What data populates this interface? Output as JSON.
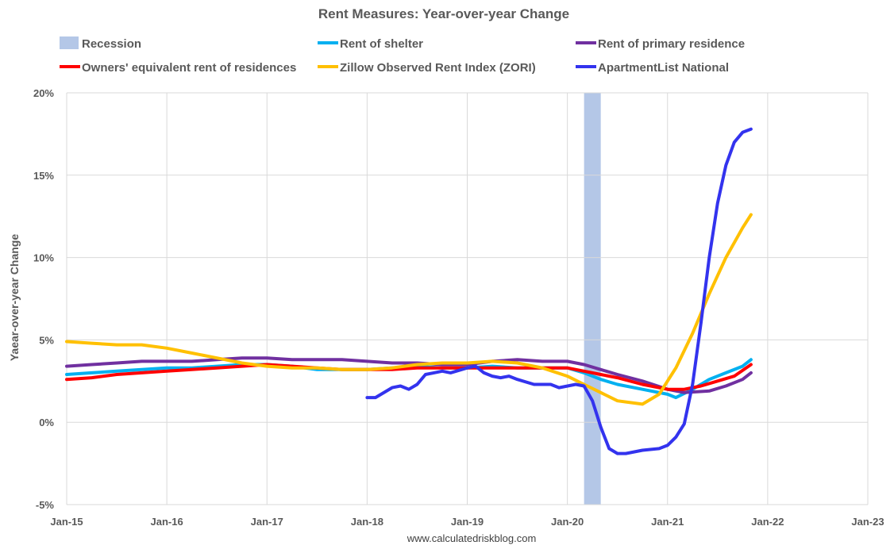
{
  "chart_data": {
    "type": "line",
    "title": "Rent Measures: Year-over-year Change",
    "ylabel": "Yaear-over-year Change",
    "xlabel": "",
    "credit": "www.calculatedriskblog.com",
    "ylim": [
      -5,
      20
    ],
    "yticks": [
      -5,
      0,
      5,
      10,
      15,
      20
    ],
    "ytick_labels": [
      "-5%",
      "0%",
      "5%",
      "10%",
      "15%",
      "20%"
    ],
    "xlim": [
      "2015-01",
      "2023-01"
    ],
    "xtick_labels": [
      "Jan-15",
      "Jan-16",
      "Jan-17",
      "Jan-18",
      "Jan-19",
      "Jan-20",
      "Jan-21",
      "Jan-22",
      "Jan-23"
    ],
    "grid": true,
    "legend_position": "top",
    "recession": {
      "name": "Recession",
      "start": "2020-03",
      "end": "2020-05",
      "color": "#b4c7e7"
    },
    "series": [
      {
        "name": "Rent of shelter",
        "color": "#00b0f0",
        "points": [
          [
            "2015-01",
            2.9
          ],
          [
            "2015-04",
            3.0
          ],
          [
            "2015-07",
            3.1
          ],
          [
            "2015-10",
            3.2
          ],
          [
            "2016-01",
            3.3
          ],
          [
            "2016-04",
            3.3
          ],
          [
            "2016-07",
            3.4
          ],
          [
            "2016-10",
            3.5
          ],
          [
            "2017-01",
            3.5
          ],
          [
            "2017-04",
            3.4
          ],
          [
            "2017-07",
            3.2
          ],
          [
            "2017-10",
            3.2
          ],
          [
            "2018-01",
            3.2
          ],
          [
            "2018-04",
            3.3
          ],
          [
            "2018-07",
            3.4
          ],
          [
            "2018-10",
            3.3
          ],
          [
            "2019-01",
            3.3
          ],
          [
            "2019-04",
            3.4
          ],
          [
            "2019-07",
            3.3
          ],
          [
            "2019-10",
            3.3
          ],
          [
            "2020-01",
            3.3
          ],
          [
            "2020-03",
            3.0
          ],
          [
            "2020-05",
            2.6
          ],
          [
            "2020-07",
            2.3
          ],
          [
            "2020-10",
            2.0
          ],
          [
            "2021-01",
            1.7
          ],
          [
            "2021-02",
            1.5
          ],
          [
            "2021-04",
            2.0
          ],
          [
            "2021-06",
            2.6
          ],
          [
            "2021-08",
            3.0
          ],
          [
            "2021-10",
            3.4
          ],
          [
            "2021-11",
            3.8
          ]
        ]
      },
      {
        "name": "Rent of primary residence",
        "color": "#7030a0",
        "points": [
          [
            "2015-01",
            3.4
          ],
          [
            "2015-04",
            3.5
          ],
          [
            "2015-07",
            3.6
          ],
          [
            "2015-10",
            3.7
          ],
          [
            "2016-01",
            3.7
          ],
          [
            "2016-04",
            3.7
          ],
          [
            "2016-07",
            3.8
          ],
          [
            "2016-10",
            3.9
          ],
          [
            "2017-01",
            3.9
          ],
          [
            "2017-04",
            3.8
          ],
          [
            "2017-07",
            3.8
          ],
          [
            "2017-10",
            3.8
          ],
          [
            "2018-01",
            3.7
          ],
          [
            "2018-04",
            3.6
          ],
          [
            "2018-07",
            3.6
          ],
          [
            "2018-10",
            3.5
          ],
          [
            "2019-01",
            3.5
          ],
          [
            "2019-04",
            3.7
          ],
          [
            "2019-07",
            3.8
          ],
          [
            "2019-10",
            3.7
          ],
          [
            "2020-01",
            3.7
          ],
          [
            "2020-03",
            3.5
          ],
          [
            "2020-05",
            3.2
          ],
          [
            "2020-07",
            2.9
          ],
          [
            "2020-10",
            2.5
          ],
          [
            "2021-01",
            2.0
          ],
          [
            "2021-03",
            1.8
          ],
          [
            "2021-06",
            1.9
          ],
          [
            "2021-08",
            2.2
          ],
          [
            "2021-10",
            2.6
          ],
          [
            "2021-11",
            3.0
          ]
        ]
      },
      {
        "name": "Owners' equivalent rent of residences",
        "color": "#ff0000",
        "points": [
          [
            "2015-01",
            2.6
          ],
          [
            "2015-04",
            2.7
          ],
          [
            "2015-07",
            2.9
          ],
          [
            "2015-10",
            3.0
          ],
          [
            "2016-01",
            3.1
          ],
          [
            "2016-04",
            3.2
          ],
          [
            "2016-07",
            3.3
          ],
          [
            "2016-10",
            3.4
          ],
          [
            "2017-01",
            3.5
          ],
          [
            "2017-04",
            3.4
          ],
          [
            "2017-07",
            3.3
          ],
          [
            "2017-10",
            3.2
          ],
          [
            "2018-01",
            3.2
          ],
          [
            "2018-04",
            3.2
          ],
          [
            "2018-07",
            3.3
          ],
          [
            "2018-10",
            3.3
          ],
          [
            "2019-01",
            3.3
          ],
          [
            "2019-04",
            3.3
          ],
          [
            "2019-07",
            3.3
          ],
          [
            "2019-10",
            3.3
          ],
          [
            "2020-01",
            3.3
          ],
          [
            "2020-03",
            3.1
          ],
          [
            "2020-05",
            2.9
          ],
          [
            "2020-07",
            2.7
          ],
          [
            "2020-10",
            2.3
          ],
          [
            "2021-01",
            2.0
          ],
          [
            "2021-03",
            2.0
          ],
          [
            "2021-05",
            2.2
          ],
          [
            "2021-07",
            2.5
          ],
          [
            "2021-09",
            2.8
          ],
          [
            "2021-11",
            3.5
          ]
        ]
      },
      {
        "name": "Zillow Observed Rent Index (ZORI)",
        "color": "#ffc000",
        "points": [
          [
            "2015-01",
            4.9
          ],
          [
            "2015-04",
            4.8
          ],
          [
            "2015-07",
            4.7
          ],
          [
            "2015-10",
            4.7
          ],
          [
            "2016-01",
            4.5
          ],
          [
            "2016-04",
            4.2
          ],
          [
            "2016-07",
            3.9
          ],
          [
            "2016-10",
            3.6
          ],
          [
            "2017-01",
            3.4
          ],
          [
            "2017-04",
            3.3
          ],
          [
            "2017-07",
            3.3
          ],
          [
            "2017-10",
            3.2
          ],
          [
            "2018-01",
            3.2
          ],
          [
            "2018-04",
            3.3
          ],
          [
            "2018-07",
            3.5
          ],
          [
            "2018-10",
            3.6
          ],
          [
            "2019-01",
            3.6
          ],
          [
            "2019-04",
            3.7
          ],
          [
            "2019-07",
            3.6
          ],
          [
            "2019-10",
            3.3
          ],
          [
            "2020-01",
            2.8
          ],
          [
            "2020-03",
            2.3
          ],
          [
            "2020-05",
            1.8
          ],
          [
            "2020-07",
            1.3
          ],
          [
            "2020-10",
            1.1
          ],
          [
            "2020-12",
            1.7
          ],
          [
            "2021-02",
            3.3
          ],
          [
            "2021-04",
            5.4
          ],
          [
            "2021-06",
            7.8
          ],
          [
            "2021-08",
            10.0
          ],
          [
            "2021-10",
            11.8
          ],
          [
            "2021-11",
            12.6
          ]
        ]
      },
      {
        "name": "ApartmentList National",
        "color": "#3333ee",
        "points": [
          [
            "2018-01",
            1.5
          ],
          [
            "2018-02",
            1.5
          ],
          [
            "2018-04",
            2.1
          ],
          [
            "2018-05",
            2.2
          ],
          [
            "2018-06",
            2.0
          ],
          [
            "2018-07",
            2.3
          ],
          [
            "2018-08",
            2.9
          ],
          [
            "2018-09",
            3.0
          ],
          [
            "2018-10",
            3.1
          ],
          [
            "2018-11",
            3.0
          ],
          [
            "2019-01",
            3.3
          ],
          [
            "2019-02",
            3.4
          ],
          [
            "2019-03",
            3.0
          ],
          [
            "2019-04",
            2.8
          ],
          [
            "2019-05",
            2.7
          ],
          [
            "2019-06",
            2.8
          ],
          [
            "2019-07",
            2.6
          ],
          [
            "2019-09",
            2.3
          ],
          [
            "2019-11",
            2.3
          ],
          [
            "2019-12",
            2.1
          ],
          [
            "2020-02",
            2.3
          ],
          [
            "2020-03",
            2.2
          ],
          [
            "2020-04",
            1.3
          ],
          [
            "2020-05",
            -0.3
          ],
          [
            "2020-06",
            -1.6
          ],
          [
            "2020-07",
            -1.9
          ],
          [
            "2020-08",
            -1.9
          ],
          [
            "2020-10",
            -1.7
          ],
          [
            "2020-12",
            -1.6
          ],
          [
            "2021-01",
            -1.4
          ],
          [
            "2021-02",
            -0.9
          ],
          [
            "2021-03",
            -0.1
          ],
          [
            "2021-04",
            2.3
          ],
          [
            "2021-05",
            6.0
          ],
          [
            "2021-06",
            10.0
          ],
          [
            "2021-07",
            13.3
          ],
          [
            "2021-08",
            15.6
          ],
          [
            "2021-09",
            17.0
          ],
          [
            "2021-10",
            17.6
          ],
          [
            "2021-11",
            17.8
          ]
        ]
      }
    ]
  }
}
